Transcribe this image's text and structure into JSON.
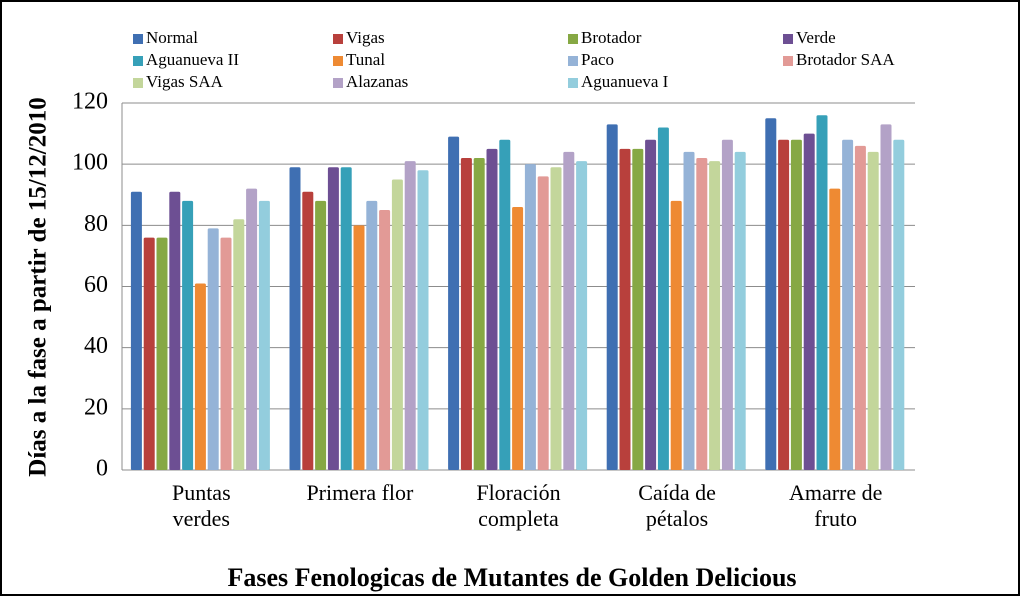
{
  "chart_data": {
    "type": "bar",
    "x_label": "Fases Fenologicas de Mutantes de Golden Delicious",
    "y_label": "Días a la fase a partir de 15/12/2010",
    "categories": [
      "Puntas verdes",
      "Primera flor",
      "Floración completa",
      "Caída de pétalos",
      "Amarre de fruto"
    ],
    "series": [
      {
        "name": "Normal",
        "color": "#3f6fb2",
        "values": [
          91,
          99,
          109,
          113,
          115
        ]
      },
      {
        "name": "Vigas",
        "color": "#b8403c",
        "values": [
          76,
          91,
          102,
          105,
          108
        ]
      },
      {
        "name": "Brotador",
        "color": "#86a844",
        "values": [
          76,
          88,
          102,
          105,
          108
        ]
      },
      {
        "name": "Verde",
        "color": "#6d4f93",
        "values": [
          91,
          99,
          105,
          108,
          110
        ]
      },
      {
        "name": "Aguanueva II",
        "color": "#36a0b8",
        "values": [
          88,
          99,
          108,
          112,
          116
        ]
      },
      {
        "name": "Tunal",
        "color": "#ee8a33",
        "values": [
          61,
          80,
          86,
          88,
          92
        ]
      },
      {
        "name": "Paco",
        "color": "#95b3d7",
        "values": [
          79,
          88,
          100,
          104,
          108
        ]
      },
      {
        "name": "Brotador SAA",
        "color": "#e29a96",
        "values": [
          76,
          85,
          96,
          102,
          106
        ]
      },
      {
        "name": "Vigas SAA",
        "color": "#c3d69b",
        "values": [
          82,
          95,
          99,
          101,
          104
        ]
      },
      {
        "name": "Alazanas",
        "color": "#b3a2c7",
        "values": [
          92,
          101,
          104,
          108,
          113
        ]
      },
      {
        "name": "Aguanueva I",
        "color": "#93cddd",
        "values": [
          88,
          98,
          101,
          104,
          108
        ]
      }
    ],
    "ylim": [
      0,
      120
    ],
    "yticks": [
      0,
      20,
      40,
      60,
      80,
      100,
      120
    ],
    "grid": true
  }
}
